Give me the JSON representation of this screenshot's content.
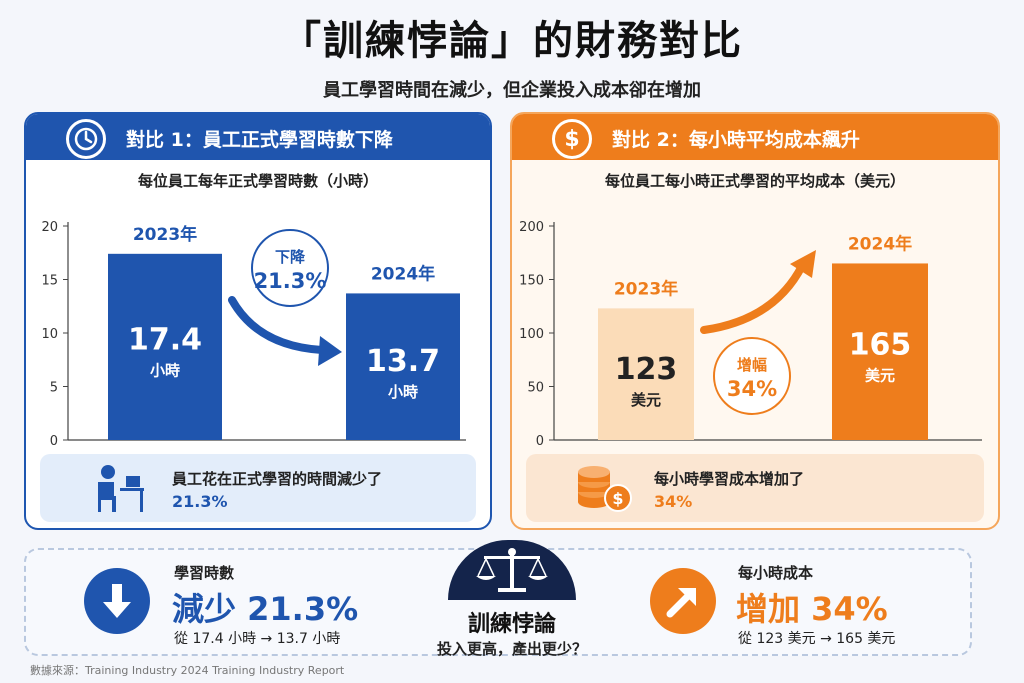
{
  "title": "「訓練悖論」的財務對比",
  "subtitle": "員工學習時間在減少，但企業投入成本卻在增加",
  "left_panel": {
    "header": "對比 1：員工正式學習時數下降",
    "icon": "clock-icon",
    "bottom_line1": "員工花在正式學習的時間減少了",
    "bottom_line2": "21.3%"
  },
  "right_panel": {
    "header": "對比 2：每小時平均成本飆升",
    "icon": "dollar-icon",
    "bottom_line1": "每小時學習成本增加了",
    "bottom_line2": "34%"
  },
  "chart_data": [
    {
      "type": "bar",
      "title": "每位員工每年正式學習時數（小時）",
      "categories": [
        "2023年",
        "2024年"
      ],
      "values": [
        17.4,
        13.7
      ],
      "value_labels": [
        "17.4",
        "13.7"
      ],
      "unit_label": "小時",
      "yticks": [
        "0",
        "5",
        "10",
        "15",
        "20"
      ],
      "ylim": [
        0,
        20
      ],
      "annotation_line1": "下降",
      "annotation_line2": "21.3%",
      "colors": [
        "#1f55ae",
        "#1f55ae"
      ]
    },
    {
      "type": "bar",
      "title": "每位員工每小時正式學習的平均成本（美元）",
      "categories": [
        "2023年",
        "2024年"
      ],
      "values": [
        123,
        165
      ],
      "value_labels": [
        "123",
        "165"
      ],
      "unit_label": "美元",
      "yticks": [
        "0",
        "50",
        "100",
        "150",
        "200"
      ],
      "ylim": [
        0,
        200
      ],
      "annotation_line1": "增幅",
      "annotation_line2": "34%",
      "colors": [
        "#fbdcb8",
        "#ee7d1c"
      ]
    }
  ],
  "summary": {
    "left_label": "學習時數",
    "left_big": "減少 21.3%",
    "left_detail": "從 17.4 小時 → 13.7 小時",
    "center_title": "訓練悖論",
    "center_sub": "投入更高，產出更少？",
    "right_label": "每小時成本",
    "right_big": "增加 34%",
    "right_detail": "從 123 美元 → 165 美元"
  },
  "source": "數據來源：Training Industry 2024 Training Industry Report"
}
